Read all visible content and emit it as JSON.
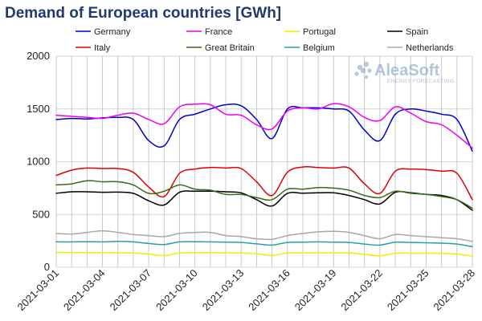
{
  "chart_data": {
    "type": "line",
    "title": "Demand of European countries [GWh]",
    "xlabel": "",
    "ylabel": "",
    "ylim": [
      0,
      2000
    ],
    "yticks": [
      0,
      500,
      1000,
      1500,
      2000
    ],
    "grid": true,
    "legend_position": "top",
    "x": [
      "2021-03-01",
      "2021-03-02",
      "2021-03-03",
      "2021-03-04",
      "2021-03-05",
      "2021-03-06",
      "2021-03-07",
      "2021-03-08",
      "2021-03-09",
      "2021-03-10",
      "2021-03-11",
      "2021-03-12",
      "2021-03-13",
      "2021-03-14",
      "2021-03-15",
      "2021-03-16",
      "2021-03-17",
      "2021-03-18",
      "2021-03-19",
      "2021-03-20",
      "2021-03-21",
      "2021-03-22",
      "2021-03-23",
      "2021-03-24",
      "2021-03-25",
      "2021-03-26",
      "2021-03-27",
      "2021-03-28"
    ],
    "xticks": [
      "2021-03-01",
      "2021-03-04",
      "2021-03-07",
      "2021-03-10",
      "2021-03-13",
      "2021-03-16",
      "2021-03-19",
      "2021-03-22",
      "2021-03-25",
      "2021-03-28"
    ],
    "series": [
      {
        "name": "Germany",
        "color": "#0000cc",
        "values": [
          1400,
          1410,
          1405,
          1415,
          1420,
          1400,
          1200,
          1150,
          1400,
          1450,
          1500,
          1540,
          1530,
          1400,
          1220,
          1500,
          1510,
          1510,
          1500,
          1480,
          1300,
          1200,
          1450,
          1500,
          1480,
          1450,
          1400,
          1100
        ]
      },
      {
        "name": "France",
        "color": "#ee00ee",
        "values": [
          1440,
          1430,
          1420,
          1410,
          1440,
          1460,
          1400,
          1360,
          1520,
          1545,
          1540,
          1450,
          1440,
          1350,
          1310,
          1480,
          1510,
          1500,
          1550,
          1520,
          1420,
          1390,
          1520,
          1460,
          1380,
          1350,
          1250,
          1130
        ]
      },
      {
        "name": "Portugal",
        "color": "#eeee00",
        "values": [
          140,
          140,
          138,
          138,
          138,
          135,
          125,
          110,
          135,
          138,
          138,
          137,
          135,
          128,
          112,
          135,
          136,
          137,
          137,
          136,
          122,
          108,
          132,
          133,
          133,
          132,
          125,
          105
        ]
      },
      {
        "name": "Spain",
        "color": "#000000",
        "values": [
          700,
          715,
          715,
          710,
          712,
          700,
          630,
          590,
          710,
          720,
          720,
          715,
          705,
          640,
          580,
          700,
          702,
          705,
          705,
          680,
          640,
          600,
          710,
          705,
          690,
          680,
          640,
          540
        ]
      },
      {
        "name": "Italy",
        "color": "#dd0000",
        "values": [
          870,
          920,
          940,
          935,
          935,
          900,
          760,
          670,
          890,
          930,
          945,
          940,
          935,
          810,
          680,
          900,
          950,
          945,
          940,
          940,
          790,
          700,
          910,
          930,
          925,
          910,
          890,
          640
        ]
      },
      {
        "name": "Great Britain",
        "color": "#3a6a1a",
        "values": [
          780,
          790,
          820,
          810,
          810,
          780,
          700,
          720,
          780,
          740,
          730,
          690,
          690,
          660,
          640,
          740,
          740,
          755,
          750,
          730,
          680,
          660,
          720,
          700,
          690,
          670,
          640,
          560
        ]
      },
      {
        "name": "Belgium",
        "color": "#2aa0a0",
        "values": [
          240,
          240,
          242,
          240,
          245,
          240,
          225,
          215,
          240,
          242,
          240,
          238,
          235,
          222,
          210,
          235,
          238,
          240,
          238,
          235,
          220,
          210,
          238,
          235,
          232,
          228,
          220,
          195
        ]
      },
      {
        "name": "Netherlands",
        "color": "#a8a8a8",
        "values": [
          320,
          315,
          330,
          345,
          330,
          310,
          300,
          290,
          320,
          330,
          330,
          300,
          290,
          270,
          265,
          300,
          320,
          335,
          340,
          330,
          300,
          270,
          310,
          300,
          290,
          280,
          270,
          245
        ]
      }
    ]
  },
  "watermark": {
    "brand": "AleaSoft",
    "tagline": "ENERGY FORECASTING"
  }
}
